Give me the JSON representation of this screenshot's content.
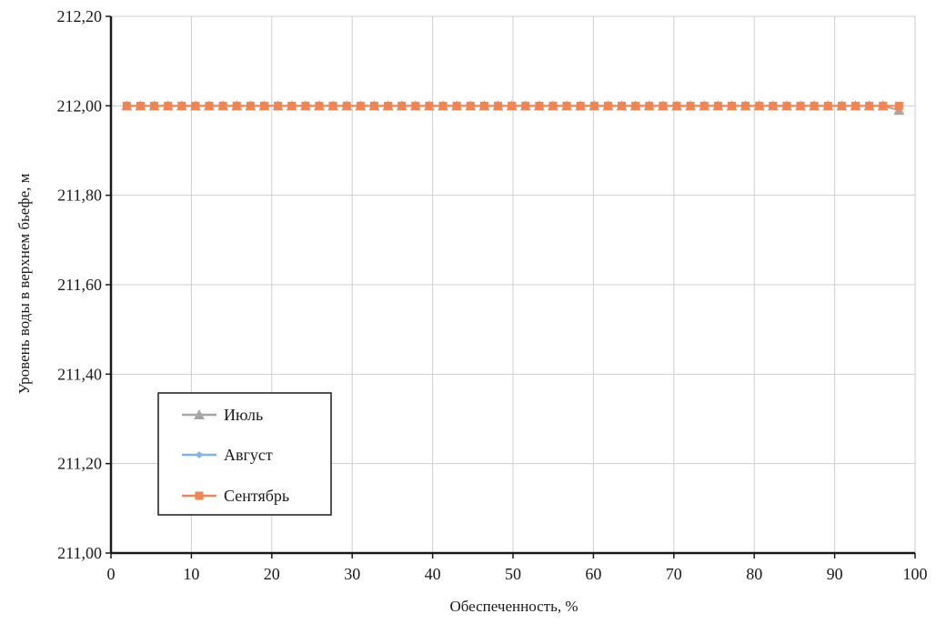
{
  "chart_data": {
    "type": "line",
    "title": "",
    "xlabel": "Обеспеченность, %",
    "ylabel": "Уровень воды в верхнем бьефе, м",
    "xlim": [
      0,
      100
    ],
    "ylim": [
      211.0,
      212.2
    ],
    "x_ticks": [
      0,
      10,
      20,
      30,
      40,
      50,
      60,
      70,
      80,
      90,
      100
    ],
    "x_tick_labels": [
      "0",
      "10",
      "20",
      "30",
      "40",
      "50",
      "60",
      "70",
      "80",
      "90",
      "100"
    ],
    "y_ticks": [
      211.0,
      211.2,
      211.4,
      211.6,
      211.8,
      212.0,
      212.2
    ],
    "y_tick_labels": [
      "211,00",
      "211,20",
      "211,40",
      "211,60",
      "211,80",
      "212,00",
      "212,20"
    ],
    "grid": true,
    "legend_position": "bottom-left",
    "x": [
      1.96,
      3.67,
      5.38,
      7.09,
      8.8,
      10.51,
      12.22,
      13.93,
      15.64,
      17.35,
      19.06,
      20.77,
      22.48,
      24.19,
      25.9,
      27.61,
      29.32,
      31.03,
      32.74,
      34.45,
      36.16,
      37.87,
      39.58,
      41.29,
      43.0,
      44.71,
      46.42,
      48.13,
      49.84,
      51.55,
      53.26,
      54.97,
      56.68,
      58.39,
      60.1,
      61.81,
      63.52,
      65.23,
      66.94,
      68.65,
      70.36,
      72.07,
      73.78,
      75.49,
      77.2,
      78.91,
      80.62,
      82.33,
      84.04,
      85.75,
      87.46,
      89.17,
      90.88,
      92.59,
      94.3,
      96.01,
      98.0
    ],
    "series": [
      {
        "name": "Июль",
        "color": "#a6a6a6",
        "marker": "triangle",
        "values": [
          212.0,
          212.0,
          212.0,
          212.0,
          212.0,
          212.0,
          212.0,
          212.0,
          212.0,
          212.0,
          212.0,
          212.0,
          212.0,
          212.0,
          212.0,
          212.0,
          212.0,
          212.0,
          212.0,
          212.0,
          212.0,
          212.0,
          212.0,
          212.0,
          212.0,
          212.0,
          212.0,
          212.0,
          212.0,
          212.0,
          212.0,
          212.0,
          212.0,
          212.0,
          212.0,
          212.0,
          212.0,
          212.0,
          212.0,
          212.0,
          212.0,
          212.0,
          212.0,
          212.0,
          212.0,
          212.0,
          212.0,
          212.0,
          212.0,
          212.0,
          212.0,
          212.0,
          212.0,
          212.0,
          212.0,
          212.0,
          211.99
        ]
      },
      {
        "name": "Август",
        "color": "#7fb2e5",
        "marker": "diamond",
        "values": [
          212.0,
          212.0,
          212.0,
          212.0,
          212.0,
          212.0,
          212.0,
          212.0,
          212.0,
          212.0,
          212.0,
          212.0,
          212.0,
          212.0,
          212.0,
          212.0,
          212.0,
          212.0,
          212.0,
          212.0,
          212.0,
          212.0,
          212.0,
          212.0,
          212.0,
          212.0,
          212.0,
          212.0,
          212.0,
          212.0,
          212.0,
          212.0,
          212.0,
          212.0,
          212.0,
          212.0,
          212.0,
          212.0,
          212.0,
          212.0,
          212.0,
          212.0,
          212.0,
          212.0,
          212.0,
          212.0,
          212.0,
          212.0,
          212.0,
          212.0,
          212.0,
          212.0,
          212.0,
          212.0,
          212.0,
          212.0,
          212.0
        ]
      },
      {
        "name": "Сентябрь",
        "color": "#ef8552",
        "marker": "square",
        "values": [
          212.0,
          212.0,
          212.0,
          212.0,
          212.0,
          212.0,
          212.0,
          212.0,
          212.0,
          212.0,
          212.0,
          212.0,
          212.0,
          212.0,
          212.0,
          212.0,
          212.0,
          212.0,
          212.0,
          212.0,
          212.0,
          212.0,
          212.0,
          212.0,
          212.0,
          212.0,
          212.0,
          212.0,
          212.0,
          212.0,
          212.0,
          212.0,
          212.0,
          212.0,
          212.0,
          212.0,
          212.0,
          212.0,
          212.0,
          212.0,
          212.0,
          212.0,
          212.0,
          212.0,
          212.0,
          212.0,
          212.0,
          212.0,
          212.0,
          212.0,
          212.0,
          212.0,
          212.0,
          212.0,
          212.0,
          212.0,
          212.0
        ]
      }
    ]
  }
}
